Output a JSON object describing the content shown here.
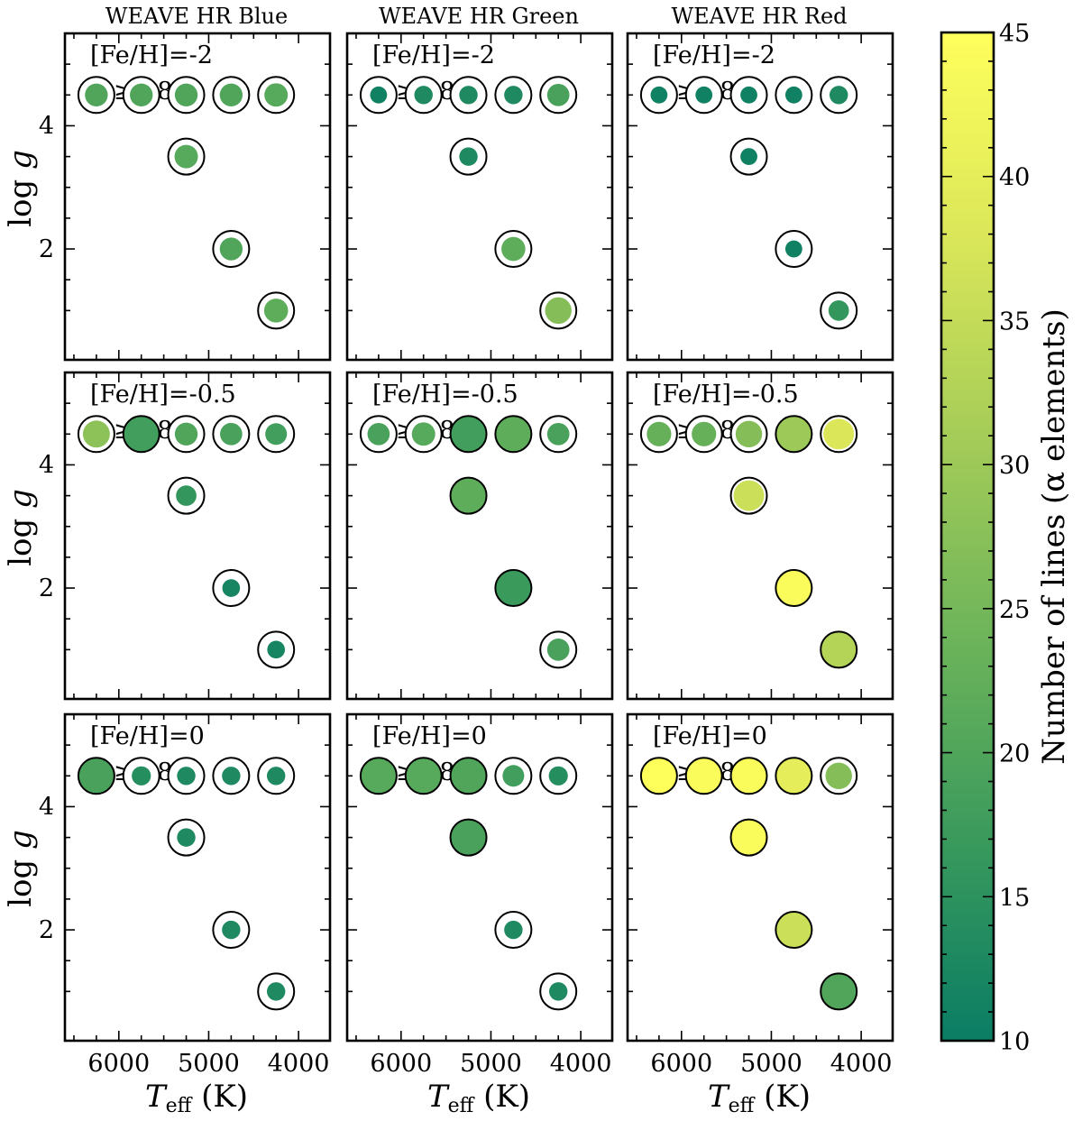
{
  "chart_data": {
    "type": "scatter",
    "description_of_encoding": {
      "color": "number of lines (alpha elements), colormap 10 to 45",
      "inner_marker_size": "scaled with number of lines relative to outer ring"
    },
    "column_titles": [
      "WEAVE HR Blue",
      "WEAVE HR Green",
      "WEAVE HR Red"
    ],
    "row_annotations": [
      {
        "feh": "[Fe/H]=-2",
        "p": "p ≥0.8"
      },
      {
        "feh": "[Fe/H]=-0.5",
        "p": "p ≥0.8"
      },
      {
        "feh": "[Fe/H]=0",
        "p": "p ≥0.8"
      }
    ],
    "xlabel": "T",
    "xlabel_sub": "eff",
    "xlabel_unit": " (K)",
    "ylabel": "log g",
    "xlim": [
      6600,
      3650
    ],
    "ylim": [
      5.5,
      0.2
    ],
    "xticks": [
      6000,
      5000,
      4000
    ],
    "yticks": [
      2,
      4
    ],
    "colorbar": {
      "label": "Number of lines (α elements)",
      "min": 10,
      "max": 45,
      "ticks": [
        10,
        15,
        20,
        25,
        30,
        35,
        40,
        45
      ],
      "colors": [
        "#0a7d64",
        "#3a9a5c",
        "#6db45a",
        "#a5cc58",
        "#dbe759",
        "#ffff5c"
      ]
    },
    "stars": [
      {
        "teff": 6250,
        "logg": 4.5
      },
      {
        "teff": 5750,
        "logg": 4.5
      },
      {
        "teff": 5250,
        "logg": 4.5
      },
      {
        "teff": 4750,
        "logg": 4.5
      },
      {
        "teff": 4250,
        "logg": 4.5
      },
      {
        "teff": 5250,
        "logg": 3.5
      },
      {
        "teff": 4750,
        "logg": 2.0
      },
      {
        "teff": 4250,
        "logg": 1.0
      }
    ],
    "panels": [
      {
        "row": 0,
        "col": 0,
        "values": [
          20,
          20,
          20,
          20,
          21,
          21,
          20,
          22
        ],
        "ring": [
          true,
          true,
          true,
          true,
          true,
          true,
          true,
          true
        ]
      },
      {
        "row": 0,
        "col": 1,
        "values": [
          11,
          13,
          13,
          13,
          19,
          13,
          22,
          27
        ],
        "ring": [
          true,
          true,
          true,
          true,
          true,
          true,
          true,
          true
        ]
      },
      {
        "row": 0,
        "col": 2,
        "values": [
          11,
          11,
          11,
          11,
          13,
          11,
          11,
          16
        ],
        "ring": [
          true,
          true,
          true,
          true,
          true,
          true,
          true,
          true
        ]
      },
      {
        "row": 1,
        "col": 0,
        "values": [
          28,
          18,
          20,
          19,
          18,
          16,
          12,
          12
        ],
        "ring": [
          true,
          false,
          true,
          true,
          true,
          true,
          true,
          true
        ]
      },
      {
        "row": 1,
        "col": 1,
        "values": [
          19,
          21,
          18,
          22,
          19,
          22,
          17,
          19
        ],
        "ring": [
          true,
          true,
          false,
          false,
          true,
          false,
          false,
          true
        ]
      },
      {
        "row": 1,
        "col": 2,
        "values": [
          23,
          23,
          27,
          30,
          38,
          36,
          44,
          33
        ],
        "ring": [
          true,
          true,
          true,
          false,
          true,
          true,
          false,
          false
        ]
      },
      {
        "row": 2,
        "col": 0,
        "values": [
          19,
          14,
          13,
          13,
          13,
          13,
          13,
          13
        ],
        "ring": [
          false,
          true,
          true,
          true,
          true,
          true,
          true,
          true
        ]
      },
      {
        "row": 2,
        "col": 1,
        "values": [
          21,
          21,
          20,
          18,
          14,
          19,
          13,
          13
        ],
        "ring": [
          false,
          false,
          false,
          true,
          true,
          false,
          true,
          true
        ]
      },
      {
        "row": 2,
        "col": 2,
        "values": [
          45,
          44,
          44,
          40,
          27,
          44,
          36,
          20
        ],
        "ring": [
          false,
          false,
          false,
          false,
          true,
          false,
          false,
          false
        ]
      }
    ]
  }
}
